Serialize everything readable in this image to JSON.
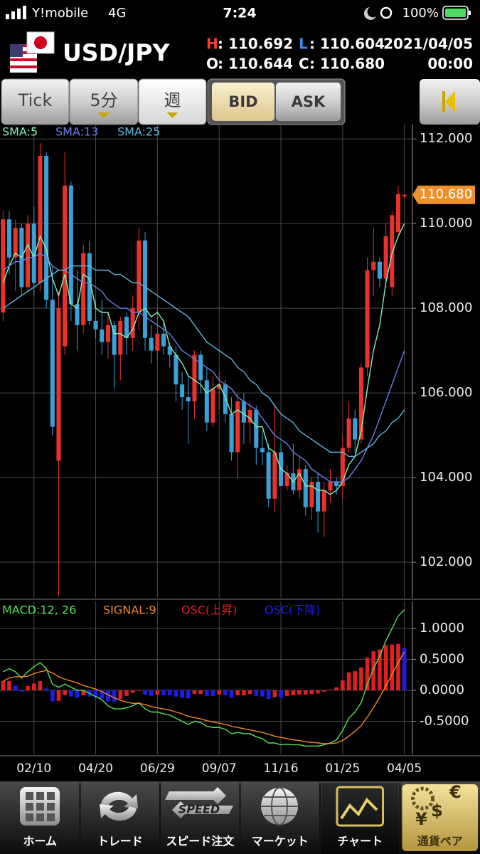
{
  "status_bar": {
    "carrier": "Y!mobile",
    "network": "4G",
    "time": "7:24",
    "battery": "100%"
  },
  "header": {
    "pair": "USD/JPY",
    "high": {
      "label": "H",
      "value": ": 110.692"
    },
    "low": {
      "label": "L",
      "value": ": 110.604"
    },
    "open": {
      "label": "O",
      "value": ": 110.644"
    },
    "close": {
      "label": "C",
      "value": ": 110.680"
    },
    "date": "2021/04/05",
    "time": "00:00"
  },
  "toolbar": {
    "periods": [
      "Tick",
      "5分",
      "週"
    ],
    "selected_period": 2,
    "sides": [
      "BID",
      "ASK"
    ],
    "selected_side": 0
  },
  "chart_data": [
    {
      "type": "candlestick",
      "grid": true,
      "up_color": "#e8322b",
      "down_color": "#3aa0d8",
      "categories": [
        null,
        null,
        null,
        null,
        null,
        "02/10",
        null,
        null,
        null,
        null,
        null,
        null,
        null,
        null,
        null,
        "04/20",
        null,
        null,
        null,
        null,
        null,
        null,
        null,
        null,
        null,
        "06/29",
        null,
        null,
        null,
        null,
        null,
        null,
        null,
        null,
        null,
        "09/07",
        null,
        null,
        null,
        null,
        null,
        null,
        null,
        null,
        null,
        "11/16",
        null,
        null,
        null,
        null,
        null,
        null,
        null,
        null,
        null,
        "01/25",
        null,
        null,
        null,
        null,
        null,
        null,
        null,
        null,
        null,
        "04/05"
      ],
      "open": [
        107.9,
        110.1,
        109.2,
        109.9,
        108.5,
        110.0,
        108.6,
        111.6,
        108.2,
        104.4,
        107.1,
        110.9,
        108.1,
        107.6,
        109.3,
        107.7,
        107.5,
        107.2,
        107.6,
        106.9,
        107.8,
        107.3,
        107.9,
        109.6,
        107.3,
        107.0,
        107.4,
        107.1,
        106.9,
        106.2,
        105.9,
        105.8,
        106.9,
        106.3,
        105.3,
        106.1,
        106.2,
        105.5,
        104.6,
        105.8,
        105.3,
        105.6,
        104.7,
        104.6,
        103.5,
        104.6,
        103.8,
        104.1,
        103.7,
        104.2,
        103.3,
        103.9,
        103.2,
        103.7,
        103.9,
        103.8,
        104.7,
        105.4,
        104.9,
        106.6,
        108.9,
        109.1,
        108.7,
        108.5,
        109.8,
        110.644
      ],
      "high": [
        110.3,
        110.3,
        110.1,
        110.0,
        110.2,
        110.4,
        111.9,
        111.7,
        109.0,
        108.4,
        111.7,
        111.0,
        108.9,
        109.5,
        109.6,
        108.2,
        108.2,
        107.9,
        107.7,
        107.8,
        107.9,
        108.3,
        109.9,
        109.8,
        107.6,
        108.0,
        107.7,
        107.2,
        107.1,
        106.5,
        106.4,
        107.0,
        107.0,
        106.6,
        106.4,
        106.5,
        106.3,
        105.9,
        106.0,
        106.0,
        105.8,
        105.7,
        105.1,
        104.8,
        105.7,
        104.8,
        104.3,
        104.8,
        104.5,
        104.3,
        104.0,
        104.1,
        103.9,
        104.2,
        104.0,
        105.0,
        105.8,
        105.6,
        106.7,
        109.2,
        109.9,
        109.2,
        110.0,
        110.3,
        110.9,
        110.692
      ],
      "low": [
        107.7,
        108.8,
        108.4,
        108.3,
        108.4,
        108.3,
        108.4,
        108.0,
        105.0,
        101.2,
        106.9,
        107.7,
        107.0,
        107.4,
        107.6,
        107.3,
        106.9,
        106.8,
        106.1,
        106.3,
        106.9,
        107.0,
        107.5,
        107.0,
        106.7,
        106.8,
        106.9,
        106.6,
        105.8,
        105.6,
        104.8,
        105.4,
        106.0,
        105.1,
        105.2,
        105.6,
        105.3,
        104.4,
        104.0,
        104.8,
        104.8,
        104.3,
        104.3,
        103.3,
        103.2,
        103.8,
        103.7,
        103.6,
        103.5,
        103.1,
        103.0,
        102.7,
        102.6,
        103.4,
        103.6,
        103.5,
        104.6,
        104.6,
        104.8,
        106.4,
        108.3,
        108.5,
        108.5,
        108.3,
        109.7,
        110.604
      ],
      "close": [
        110.1,
        109.2,
        109.9,
        108.5,
        110.0,
        108.6,
        111.6,
        108.2,
        105.2,
        108.0,
        110.9,
        108.1,
        107.6,
        109.3,
        107.7,
        107.5,
        107.2,
        107.6,
        106.9,
        107.7,
        107.3,
        108.0,
        109.6,
        107.3,
        107.0,
        107.4,
        107.1,
        106.9,
        106.2,
        105.9,
        105.8,
        106.9,
        106.3,
        105.3,
        106.1,
        106.2,
        105.5,
        104.6,
        105.8,
        105.3,
        105.6,
        104.7,
        104.6,
        103.5,
        104.6,
        103.8,
        104.1,
        103.7,
        104.2,
        103.3,
        103.9,
        103.2,
        103.7,
        103.9,
        103.8,
        104.7,
        105.4,
        104.9,
        106.6,
        108.9,
        109.1,
        108.7,
        109.7,
        110.2,
        110.7,
        110.68
      ],
      "series": [
        {
          "name": "SMA:5",
          "color": "#86f0b4",
          "values": [
            108.6,
            109.0,
            109.3,
            109.2,
            109.5,
            109.2,
            109.7,
            109.4,
            108.7,
            108.3,
            108.8,
            108.1,
            108.0,
            108.8,
            108.7,
            108.0,
            107.9,
            107.9,
            107.4,
            107.4,
            107.3,
            107.5,
            107.9,
            108.0,
            107.8,
            107.9,
            107.7,
            107.1,
            106.9,
            106.7,
            106.4,
            106.3,
            106.2,
            106.0,
            106.1,
            106.2,
            105.9,
            105.5,
            105.6,
            105.5,
            105.4,
            105.2,
            105.2,
            104.7,
            104.6,
            104.2,
            104.1,
            103.9,
            104.1,
            103.8,
            103.8,
            103.7,
            103.7,
            103.6,
            103.7,
            103.9,
            104.3,
            104.5,
            105.1,
            106.1,
            107.0,
            107.6,
            108.6,
            109.3,
            109.7,
            110.0
          ]
        },
        {
          "name": "SMA:13",
          "color": "#6a7ee8",
          "values": [
            108.9,
            109.0,
            109.1,
            109.1,
            109.2,
            109.2,
            109.3,
            109.2,
            109.0,
            108.9,
            108.9,
            108.8,
            108.7,
            108.6,
            108.6,
            108.5,
            108.4,
            108.2,
            108.1,
            108.0,
            108.0,
            107.9,
            107.9,
            107.8,
            107.7,
            107.6,
            107.5,
            107.4,
            107.2,
            107.0,
            106.9,
            106.8,
            106.7,
            106.6,
            106.5,
            106.3,
            106.2,
            106.1,
            105.9,
            105.8,
            105.7,
            105.6,
            105.4,
            105.2,
            105.0,
            104.9,
            104.8,
            104.6,
            104.5,
            104.4,
            104.2,
            104.1,
            104.0,
            103.9,
            103.9,
            103.9,
            104.0,
            104.2,
            104.4,
            104.7,
            105.0,
            105.4,
            105.8,
            106.2,
            106.6,
            107.0
          ]
        },
        {
          "name": "SMA:25",
          "color": "#5cb6de",
          "values": [
            108.0,
            108.1,
            108.2,
            108.3,
            108.4,
            108.5,
            108.6,
            108.7,
            108.8,
            108.9,
            108.9,
            109.0,
            109.0,
            109.0,
            109.0,
            108.9,
            108.9,
            108.9,
            108.8,
            108.8,
            108.7,
            108.6,
            108.6,
            108.5,
            108.4,
            108.3,
            108.2,
            108.1,
            108.0,
            107.9,
            107.8,
            107.6,
            107.4,
            107.2,
            107.1,
            107.0,
            106.9,
            106.8,
            106.6,
            106.5,
            106.3,
            106.2,
            106.0,
            105.9,
            105.7,
            105.5,
            105.4,
            105.3,
            105.1,
            105.0,
            104.9,
            104.8,
            104.7,
            104.6,
            104.6,
            104.6,
            104.5,
            104.5,
            104.6,
            104.7,
            104.8,
            105.0,
            105.1,
            105.3,
            105.4,
            105.6
          ]
        }
      ],
      "last_price": {
        "value": 110.68,
        "label": "110.680"
      },
      "ylim": [
        101.16,
        112.34
      ],
      "yticks": [
        {
          "value": 102,
          "label": "102.000"
        },
        {
          "value": 104,
          "label": "104.000"
        },
        {
          "value": 106,
          "label": "106.000"
        },
        {
          "value": 108,
          "label": "108.000"
        },
        {
          "value": 110,
          "label": "110.000"
        },
        {
          "value": 112,
          "label": "112.000"
        }
      ]
    },
    {
      "type": "macd",
      "grid": true,
      "series": [
        {
          "name": "MACD:12, 26",
          "color": "#5be05b",
          "type": "line",
          "values": [
            0.3,
            0.35,
            0.3,
            0.2,
            0.3,
            0.38,
            0.45,
            0.35,
            0.1,
            0.05,
            0.1,
            0.05,
            0.0,
            0.0,
            -0.05,
            -0.1,
            -0.15,
            -0.25,
            -0.3,
            -0.3,
            -0.28,
            -0.25,
            -0.2,
            -0.3,
            -0.35,
            -0.35,
            -0.38,
            -0.4,
            -0.45,
            -0.5,
            -0.55,
            -0.5,
            -0.52,
            -0.58,
            -0.6,
            -0.6,
            -0.63,
            -0.7,
            -0.68,
            -0.7,
            -0.7,
            -0.75,
            -0.78,
            -0.85,
            -0.85,
            -0.88,
            -0.87,
            -0.88,
            -0.88,
            -0.9,
            -0.9,
            -0.9,
            -0.88,
            -0.85,
            -0.8,
            -0.65,
            -0.45,
            -0.35,
            -0.2,
            0.1,
            0.35,
            0.55,
            0.8,
            1.0,
            1.2,
            1.3
          ]
        },
        {
          "name": "SIGNAL:9",
          "color": "#f0882a",
          "type": "line",
          "values": [
            0.15,
            0.2,
            0.22,
            0.22,
            0.23,
            0.27,
            0.3,
            0.32,
            0.28,
            0.22,
            0.18,
            0.15,
            0.12,
            0.08,
            0.05,
            0.02,
            -0.02,
            -0.07,
            -0.12,
            -0.16,
            -0.19,
            -0.21,
            -0.21,
            -0.23,
            -0.26,
            -0.28,
            -0.3,
            -0.32,
            -0.35,
            -0.38,
            -0.42,
            -0.44,
            -0.46,
            -0.49,
            -0.51,
            -0.53,
            -0.55,
            -0.58,
            -0.6,
            -0.62,
            -0.64,
            -0.66,
            -0.68,
            -0.71,
            -0.74,
            -0.76,
            -0.78,
            -0.8,
            -0.81,
            -0.83,
            -0.84,
            -0.85,
            -0.86,
            -0.86,
            -0.85,
            -0.81,
            -0.74,
            -0.66,
            -0.57,
            -0.43,
            -0.28,
            -0.11,
            0.07,
            0.26,
            0.45,
            0.62
          ]
        },
        {
          "name": "OSC(上昇)",
          "color": "#e02020",
          "type": "bar",
          "values": [
            0.15,
            0.15,
            null,
            null,
            0.07,
            0.11,
            0.15,
            null,
            null,
            -0.17,
            -0.08,
            null,
            null,
            -0.08,
            null,
            null,
            null,
            null,
            null,
            -0.14,
            -0.09,
            -0.04,
            0.01,
            null,
            null,
            -0.07,
            null,
            null,
            null,
            null,
            null,
            -0.06,
            -0.06,
            null,
            null,
            -0.07,
            null,
            null,
            -0.08,
            -0.08,
            -0.06,
            null,
            null,
            null,
            -0.11,
            null,
            -0.09,
            -0.08,
            -0.07,
            -0.07,
            -0.06,
            -0.05,
            -0.02,
            0.01,
            0.05,
            0.16,
            0.29,
            0.31,
            0.37,
            0.53,
            0.63,
            0.66,
            0.73,
            0.74,
            0.75,
            null
          ]
        },
        {
          "name": "OSC(下降)",
          "color": "#1c1cf0",
          "type": "bar",
          "values": [
            null,
            null,
            0.08,
            -0.02,
            null,
            null,
            null,
            0.03,
            -0.18,
            null,
            null,
            -0.1,
            -0.12,
            null,
            -0.1,
            -0.12,
            -0.13,
            -0.18,
            -0.18,
            null,
            null,
            null,
            null,
            -0.07,
            -0.09,
            null,
            -0.08,
            -0.08,
            -0.1,
            -0.12,
            -0.13,
            null,
            null,
            -0.09,
            -0.09,
            null,
            -0.08,
            -0.12,
            null,
            null,
            null,
            -0.09,
            -0.1,
            -0.14,
            null,
            -0.12,
            null,
            null,
            null,
            null,
            null,
            null,
            null,
            null,
            null,
            null,
            null,
            null,
            null,
            null,
            null,
            null,
            null,
            null,
            null,
            0.68
          ]
        }
      ],
      "ylim": [
        -1.034,
        1.437
      ],
      "yticks": [
        {
          "value": -0.5,
          "label": "-0.5000"
        },
        {
          "value": 0,
          "label": "0.0000"
        },
        {
          "value": 0.5,
          "label": "0.5000"
        },
        {
          "value": 1,
          "label": "1.0000"
        }
      ]
    }
  ],
  "tab_bar": {
    "items": [
      "ホーム",
      "トレード",
      "スピード注文",
      "マーケット",
      "チャート",
      "通貨ペア"
    ],
    "selected": 4,
    "speed_icon": "SPEED",
    "currency_symbols": [
      "€",
      "$",
      "¥"
    ]
  }
}
